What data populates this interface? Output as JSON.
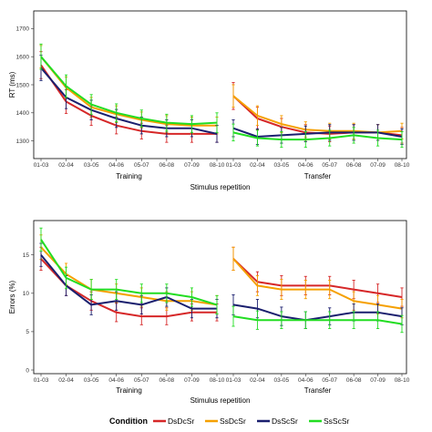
{
  "colors": {
    "DsDcSr": "#d62728",
    "SsDcSr": "#f5a000",
    "DsScSr": "#1a1f6e",
    "SsScSr": "#22dd22"
  },
  "legend": {
    "title": "Condition",
    "entries": [
      "DsDcSr",
      "SsDcSr",
      "DsScSr",
      "SsScSr"
    ],
    "placement": "bottom"
  },
  "chart_data": [
    {
      "type": "line",
      "ylabel": "RT (ms)",
      "xlabel": "Stimulus repetition",
      "ylim": [
        1250,
        1750
      ],
      "yticks": [
        1300,
        1400,
        1500,
        1600,
        1700
      ],
      "panels": [
        {
          "name": "Training",
          "categories": [
            "01-03",
            "02-04",
            "03-05",
            "04-06",
            "05-07",
            "06-08",
            "07-09",
            "08-10"
          ],
          "series": [
            {
              "name": "DsDcSr",
              "values": [
                1570,
                1440,
                1390,
                1355,
                1335,
                1325,
                1325,
                1325
              ],
              "errors": [
                48,
                42,
                35,
                30,
                28,
                30,
                30,
                30
              ]
            },
            {
              "name": "SsDcSr",
              "values": [
                1600,
                1490,
                1420,
                1395,
                1375,
                1360,
                1355,
                1355
              ],
              "errors": [
                40,
                38,
                35,
                30,
                28,
                30,
                30,
                30
              ]
            },
            {
              "name": "DsScSr",
              "values": [
                1560,
                1455,
                1410,
                1380,
                1355,
                1345,
                1345,
                1325
              ],
              "errors": [
                45,
                40,
                35,
                32,
                30,
                30,
                30,
                30
              ]
            },
            {
              "name": "SsScSr",
              "values": [
                1600,
                1495,
                1430,
                1400,
                1380,
                1365,
                1360,
                1365
              ],
              "errors": [
                45,
                40,
                35,
                32,
                30,
                30,
                30,
                35
              ]
            }
          ]
        },
        {
          "name": "Transfer",
          "categories": [
            "01-03",
            "02-04",
            "03-05",
            "04-06",
            "05-07",
            "06-08",
            "07-09",
            "08-10"
          ],
          "series": [
            {
              "name": "DsDcSr",
              "values": [
                1460,
                1380,
                1350,
                1330,
                1325,
                1330,
                1330,
                1320
              ],
              "errors": [
                48,
                40,
                30,
                28,
                28,
                28,
                28,
                28
              ]
            },
            {
              "name": "SsDcSr",
              "values": [
                1460,
                1390,
                1360,
                1340,
                1335,
                1335,
                1330,
                1335
              ],
              "errors": [
                40,
                35,
                30,
                28,
                28,
                28,
                28,
                28
              ]
            },
            {
              "name": "DsScSr",
              "values": [
                1345,
                1315,
                1320,
                1325,
                1330,
                1330,
                1330,
                1315
              ],
              "errors": [
                30,
                28,
                28,
                28,
                28,
                28,
                28,
                28
              ]
            },
            {
              "name": "SsScSr",
              "values": [
                1330,
                1310,
                1305,
                1305,
                1310,
                1320,
                1310,
                1305
              ],
              "errors": [
                30,
                28,
                28,
                28,
                28,
                28,
                28,
                28
              ]
            }
          ]
        }
      ]
    },
    {
      "type": "line",
      "ylabel": "Errors (%)",
      "xlabel": "Stimulus repetition",
      "ylim": [
        0,
        19
      ],
      "yticks": [
        0,
        5,
        10,
        15
      ],
      "panels": [
        {
          "name": "Training",
          "categories": [
            "01-03",
            "02-04",
            "03-05",
            "04-06",
            "05-07",
            "06-08",
            "07-09",
            "08-10"
          ],
          "series": [
            {
              "name": "DsDcSr",
              "values": [
                14.5,
                11.0,
                9.0,
                7.5,
                7.0,
                7.0,
                7.5,
                7.5
              ],
              "errors": [
                1.5,
                1.3,
                1.2,
                1.2,
                1.1,
                1.1,
                1.1,
                1.1
              ]
            },
            {
              "name": "SsDcSr",
              "values": [
                16.0,
                12.5,
                10.5,
                10.0,
                9.5,
                9.0,
                9.0,
                8.5
              ],
              "errors": [
                1.6,
                1.4,
                1.3,
                1.2,
                1.2,
                1.2,
                1.2,
                1.2
              ]
            },
            {
              "name": "DsScSr",
              "values": [
                15.0,
                11.0,
                8.5,
                9.0,
                8.5,
                9.5,
                8.0,
                8.0
              ],
              "errors": [
                1.5,
                1.3,
                1.3,
                1.2,
                1.2,
                1.2,
                1.2,
                1.2
              ]
            },
            {
              "name": "SsScSr",
              "values": [
                17.0,
                12.0,
                10.5,
                10.5,
                10.0,
                10.0,
                9.5,
                8.5
              ],
              "errors": [
                1.5,
                1.4,
                1.3,
                1.3,
                1.2,
                1.2,
                1.2,
                1.2
              ]
            }
          ]
        },
        {
          "name": "Transfer",
          "categories": [
            "01-03",
            "02-04",
            "03-05",
            "04-06",
            "05-07",
            "06-08",
            "07-09",
            "08-10"
          ],
          "series": [
            {
              "name": "DsDcSr",
              "values": [
                14.5,
                11.5,
                11.0,
                11.0,
                11.0,
                10.5,
                10.0,
                9.5
              ],
              "errors": [
                1.5,
                1.3,
                1.3,
                1.2,
                1.2,
                1.2,
                1.2,
                1.2
              ]
            },
            {
              "name": "SsDcSr",
              "values": [
                14.5,
                11.0,
                10.5,
                10.5,
                10.5,
                9.0,
                8.5,
                8.0
              ],
              "errors": [
                1.5,
                1.3,
                1.3,
                1.2,
                1.2,
                1.2,
                1.2,
                1.2
              ]
            },
            {
              "name": "DsScSr",
              "values": [
                8.5,
                8.0,
                7.0,
                6.5,
                7.0,
                7.5,
                7.5,
                7.0
              ],
              "errors": [
                1.3,
                1.2,
                1.2,
                1.1,
                1.1,
                1.1,
                1.1,
                1.1
              ]
            },
            {
              "name": "SsScSr",
              "values": [
                7.0,
                6.5,
                6.5,
                6.5,
                6.5,
                6.5,
                6.5,
                6.0
              ],
              "errors": [
                1.3,
                1.2,
                1.1,
                1.1,
                1.1,
                1.1,
                1.1,
                1.1
              ]
            }
          ]
        }
      ]
    }
  ]
}
